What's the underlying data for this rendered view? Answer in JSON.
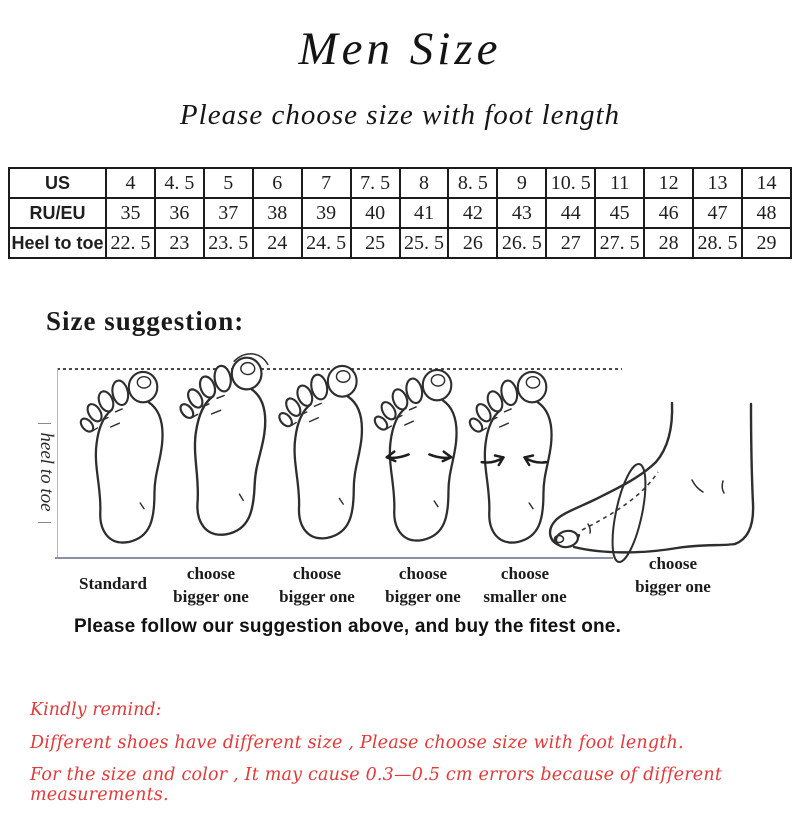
{
  "page": {
    "title": "Men Size",
    "subtitle": "Please choose size with foot length"
  },
  "size_table": {
    "rows": [
      {
        "label": "US",
        "values": [
          "4",
          "4. 5",
          "5",
          "6",
          "7",
          "7. 5",
          "8",
          "8. 5",
          "9",
          "10. 5",
          "11",
          "12",
          "13",
          "14"
        ]
      },
      {
        "label": "RU/EU",
        "values": [
          "35",
          "36",
          "37",
          "38",
          "39",
          "40",
          "41",
          "42",
          "43",
          "44",
          "45",
          "46",
          "47",
          "48"
        ]
      },
      {
        "label": "Heel to toe",
        "values": [
          "22. 5",
          "23",
          "23. 5",
          "24",
          "24. 5",
          "25",
          "25. 5",
          "26",
          "26. 5",
          "27",
          "27. 5",
          "28",
          "28. 5",
          "29"
        ]
      }
    ]
  },
  "suggestion": {
    "heading": "Size suggestion:",
    "axis_label": "heel to toe",
    "feet": [
      {
        "icon": "foot-top-view-standard-icon",
        "label_lines": [
          "Standard"
        ]
      },
      {
        "icon": "foot-top-view-long-toe-icon",
        "label_lines": [
          "choose",
          "bigger one"
        ]
      },
      {
        "icon": "foot-top-view-icon",
        "label_lines": [
          "choose",
          "bigger one"
        ]
      },
      {
        "icon": "foot-top-view-wide-icon",
        "label_lines": [
          "choose",
          "bigger one"
        ]
      },
      {
        "icon": "foot-top-view-narrow-icon",
        "label_lines": [
          "choose",
          "smaller one"
        ]
      },
      {
        "icon": "foot-side-view-high-instep-icon",
        "label_lines": [
          "choose",
          "bigger one"
        ]
      }
    ],
    "note": "Please follow our suggestion above, and buy the fitest one."
  },
  "remind": {
    "heading": "Kindly remind:",
    "lines": [
      "Different shoes have different size , Please choose size with foot length.",
      "For the size and color , It may cause 0.3—0.5 cm errors because of different measurements."
    ],
    "text_color": "#e03a3a"
  }
}
